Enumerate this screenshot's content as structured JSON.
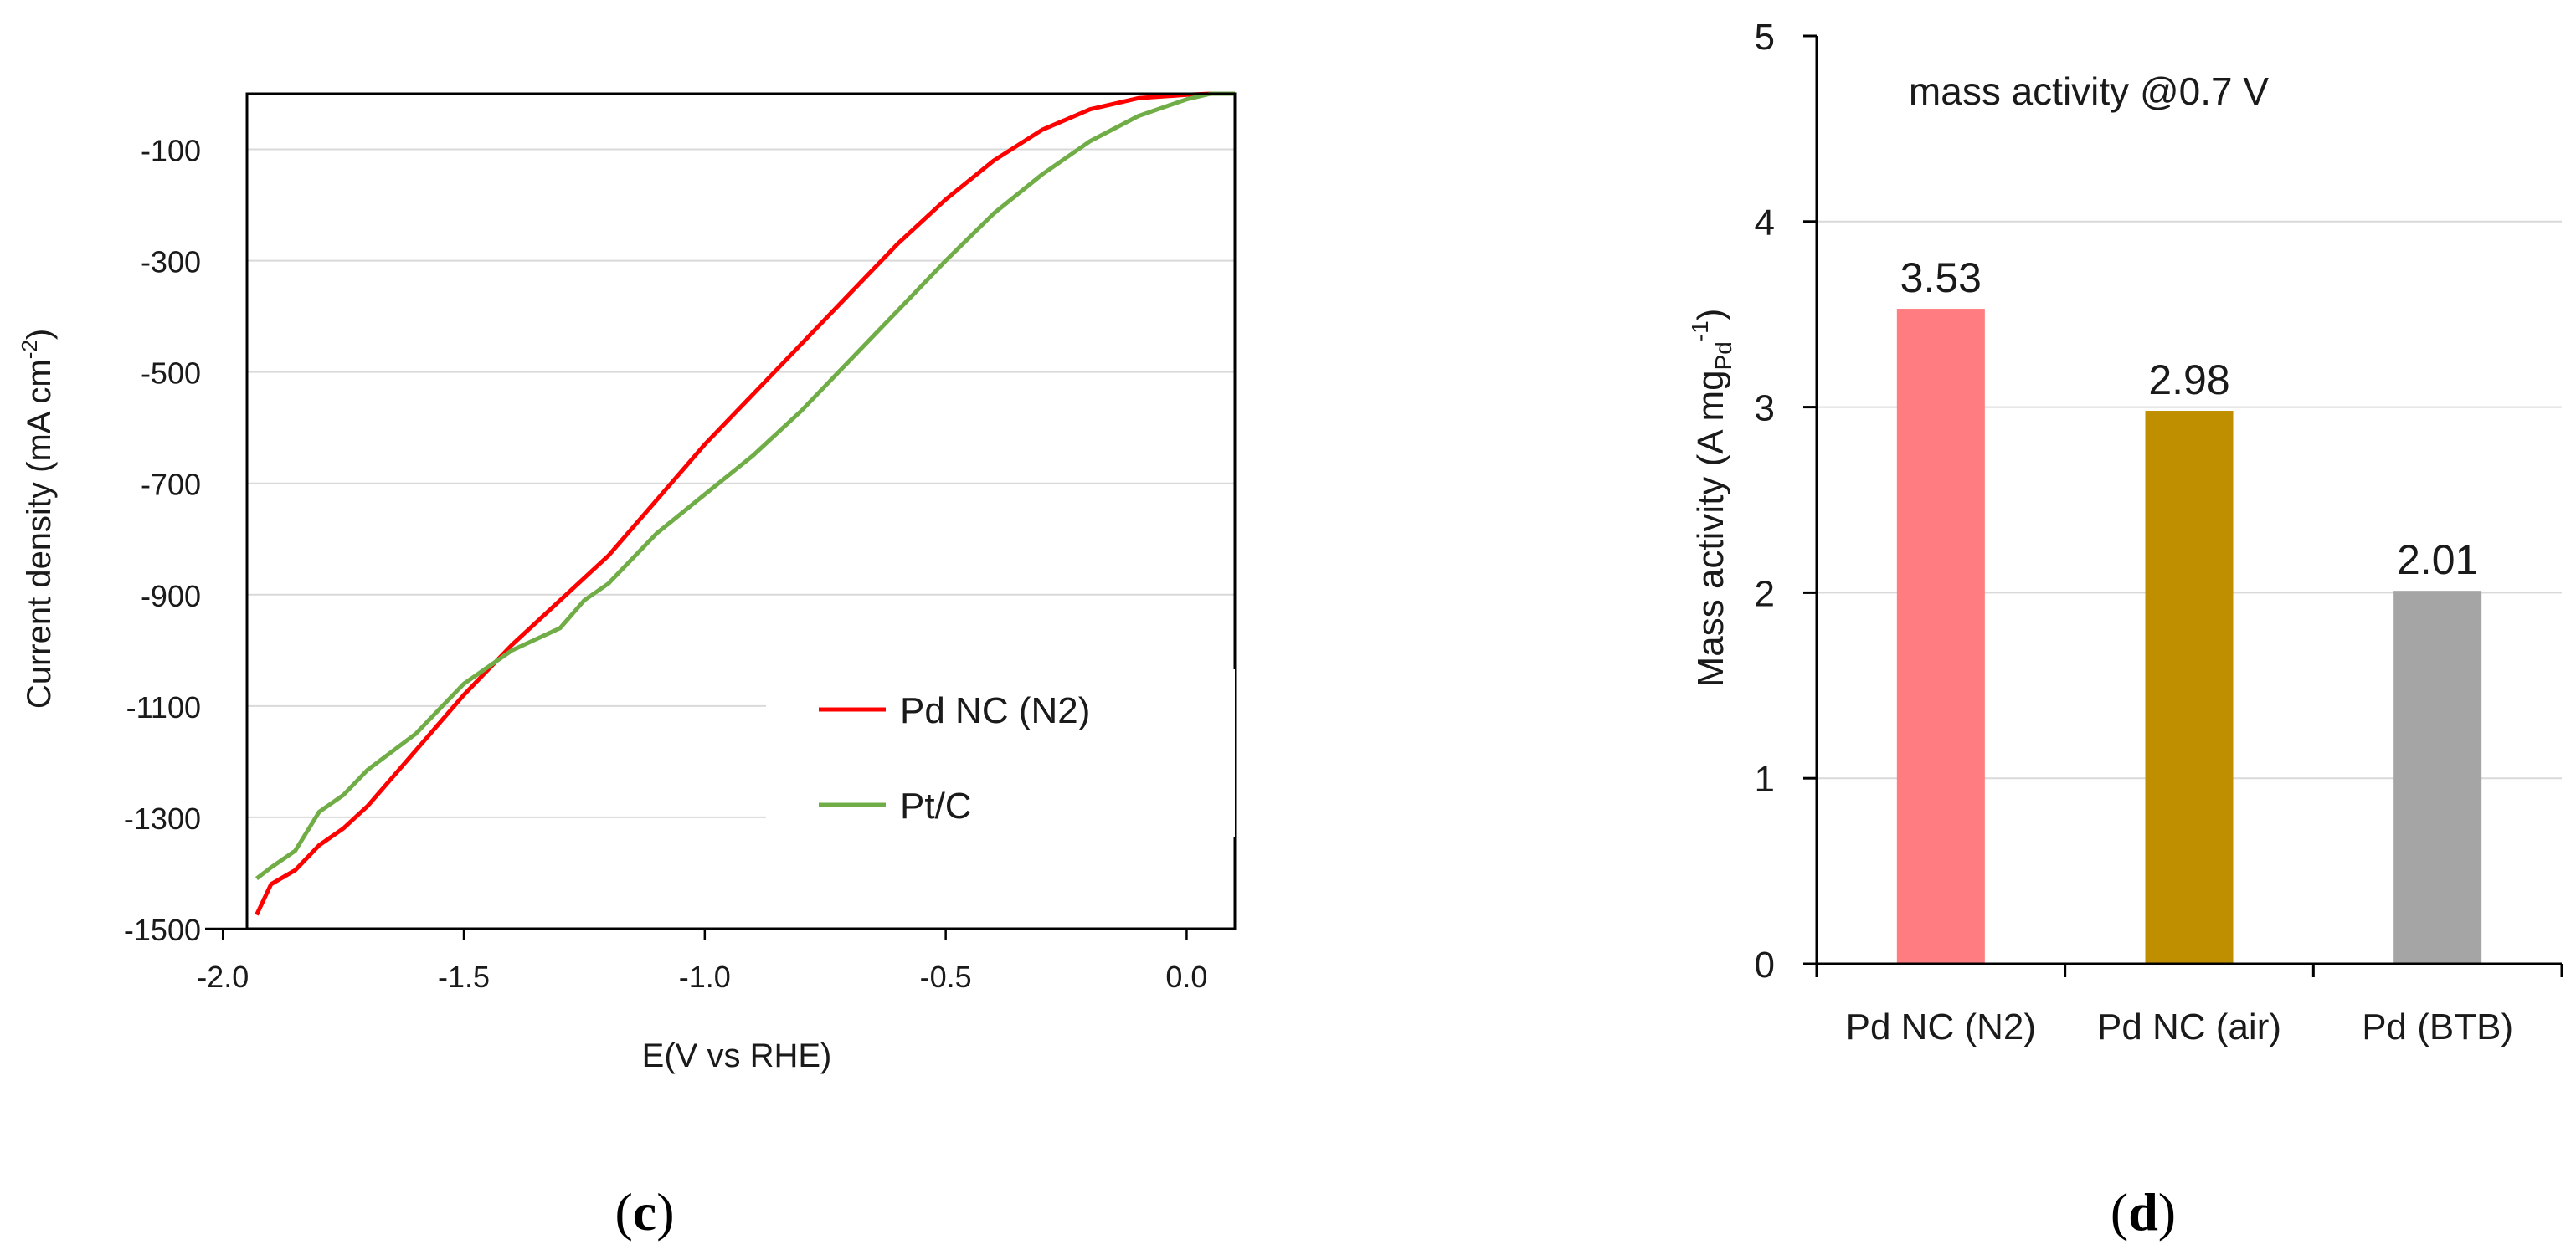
{
  "colors": {
    "pd_nc_n2": "#ff0000",
    "pt_c": "#70ad47",
    "bar_pd_nc_n2": "#ff7c80",
    "bar_pd_nc_air": "#bf8f00",
    "bar_pd_btb": "#a5a5a5",
    "grid": "#d9d9d9",
    "axis": "#000000"
  },
  "panels": {
    "c": {
      "open": "(",
      "letter": "c",
      "close": ")"
    },
    "d": {
      "open": "(",
      "letter": "d",
      "close": ")"
    }
  },
  "chart_data": [
    {
      "id": "c",
      "type": "line",
      "xlabel": "E(V vs RHE)",
      "ylabel": "Current density (mA cm",
      "ylabel_sup": "-2",
      "ylabel_close": ")",
      "xlim": [
        -1.95,
        0.1
      ],
      "ylim": [
        -1500,
        0
      ],
      "xticks": [
        -2.0,
        -1.5,
        -1.0,
        -0.5,
        0.0
      ],
      "xtick_labels": [
        "-2.0",
        "-1.5",
        "-1.0",
        "-0.5",
        "0.0"
      ],
      "yticks": [
        -100,
        -300,
        -500,
        -700,
        -900,
        -1100,
        -1300,
        -1500
      ],
      "ytick_labels": [
        "-100",
        "-300",
        "-500",
        "-700",
        "-900",
        "-1100",
        "-1300",
        "-1500"
      ],
      "grid": true,
      "legend_position": "lower-right",
      "series": [
        {
          "name": "Pd NC (N2)",
          "color_key": "pd_nc_n2",
          "x": [
            -1.93,
            -1.9,
            -1.85,
            -1.8,
            -1.75,
            -1.7,
            -1.6,
            -1.5,
            -1.4,
            -1.3,
            -1.25,
            -1.2,
            -1.1,
            -1.0,
            -0.9,
            -0.8,
            -0.7,
            -0.6,
            -0.5,
            -0.4,
            -0.3,
            -0.2,
            -0.1,
            0.0,
            0.05,
            0.1
          ],
          "y": [
            -1475,
            -1420,
            -1395,
            -1350,
            -1320,
            -1280,
            -1180,
            -1080,
            -990,
            -910,
            -870,
            -830,
            -730,
            -630,
            -540,
            -450,
            -360,
            -270,
            -190,
            -120,
            -65,
            -28,
            -8,
            -2,
            0,
            0
          ]
        },
        {
          "name": "Pt/C",
          "color_key": "pt_c",
          "x": [
            -1.93,
            -1.9,
            -1.85,
            -1.8,
            -1.75,
            -1.7,
            -1.6,
            -1.5,
            -1.4,
            -1.3,
            -1.25,
            -1.2,
            -1.1,
            -1.0,
            -0.9,
            -0.8,
            -0.7,
            -0.6,
            -0.5,
            -0.4,
            -0.3,
            -0.2,
            -0.1,
            0.0,
            0.05,
            0.1
          ],
          "y": [
            -1410,
            -1390,
            -1360,
            -1290,
            -1260,
            -1215,
            -1150,
            -1060,
            -1000,
            -960,
            -910,
            -880,
            -790,
            -720,
            -650,
            -570,
            -480,
            -390,
            -300,
            -215,
            -145,
            -85,
            -40,
            -10,
            0,
            0
          ]
        }
      ]
    },
    {
      "id": "d",
      "type": "bar",
      "title": "mass activity @0.7 V",
      "ylabel": "Mass activity (A mg",
      "ylabel_sub": "Pd",
      "ylabel_sup": "-1",
      "ylabel_close": ")",
      "ylim": [
        0,
        5
      ],
      "yticks": [
        0,
        1,
        2,
        3,
        4,
        5
      ],
      "ytick_labels": [
        "0",
        "1",
        "2",
        "3",
        "4",
        "5"
      ],
      "grid": true,
      "categories": [
        "Pd NC (N2)",
        "Pd NC (air)",
        "Pd (BTB)"
      ],
      "values": [
        3.53,
        2.98,
        2.01
      ],
      "value_labels": [
        "3.53",
        "2.98",
        "2.01"
      ],
      "color_keys": [
        "bar_pd_nc_n2",
        "bar_pd_nc_air",
        "bar_pd_btb"
      ]
    }
  ]
}
